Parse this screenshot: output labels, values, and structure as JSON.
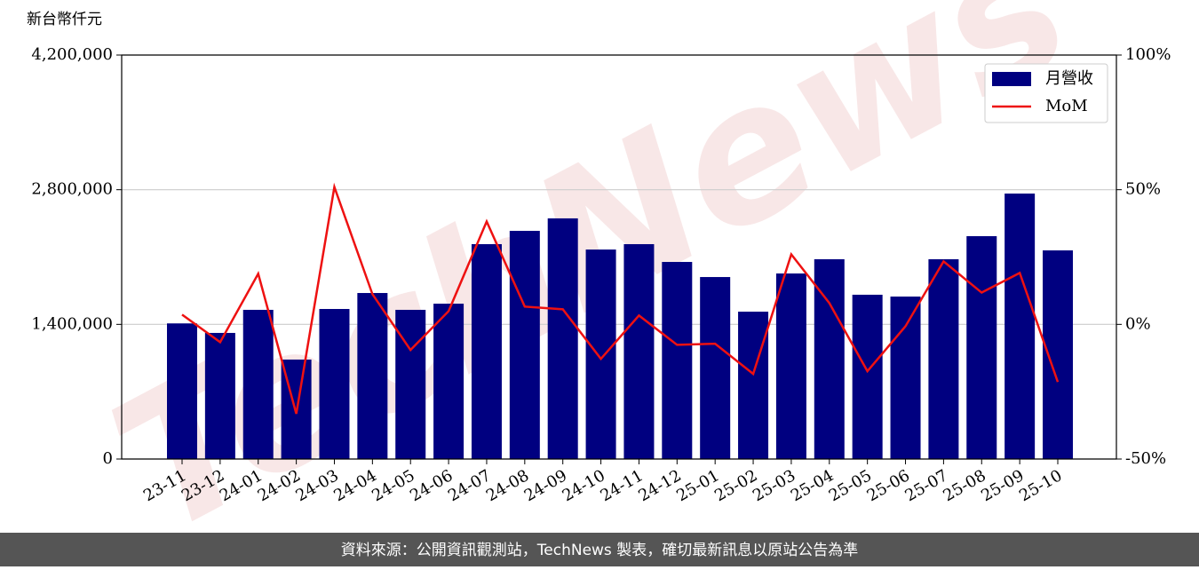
{
  "chart_data": {
    "type": "bar-line",
    "y_label": "新台幣仟元",
    "watermark": "TechNews",
    "footer": "資料來源：公開資訊觀測站，TechNews 製表，確切最新訊息以原站公告為準",
    "categories": [
      "23-11",
      "23-12",
      "24-01",
      "24-02",
      "24-03",
      "24-04",
      "24-05",
      "24-06",
      "24-07",
      "24-08",
      "24-09",
      "24-10",
      "24-11",
      "24-12",
      "25-01",
      "25-02",
      "25-03",
      "25-04",
      "25-05",
      "25-06",
      "25-07",
      "25-08",
      "25-09",
      "25-10"
    ],
    "series": [
      {
        "name": "月營收",
        "color": "#000080",
        "type": "bar",
        "values": [
          1410000,
          1311000,
          1551000,
          1034000,
          1560000,
          1726000,
          1551000,
          1615000,
          2234000,
          2372000,
          2502000,
          2178000,
          2234000,
          2049000,
          1892000,
          1532000,
          1929000,
          2077000,
          1708000,
          1689000,
          2077000,
          2317000,
          2760000,
          2169000
        ]
      },
      {
        "name": "MoM",
        "color": "#ee1111",
        "type": "line",
        "axis": "y2",
        "values": [
          3.6,
          -6.6,
          18.8,
          -33.2,
          51,
          11.2,
          -9.5,
          4.9,
          38.2,
          6.6,
          5.6,
          -12.8,
          3.3,
          -7.6,
          -7.2,
          -18.4,
          26,
          7.9,
          -17.4,
          -0.7,
          23.4,
          11.8,
          19.1,
          -21.4
        ]
      }
    ],
    "ylim": [
      0,
      4200000
    ],
    "yticks": [
      0,
      {
        "value": 1400000,
        "label": "1,400,000"
      },
      {
        "value": 2800000,
        "label": "2,800,000"
      },
      {
        "value": 4200000,
        "label": "4,200,000"
      }
    ],
    "y2lim": [
      -50,
      100
    ],
    "y2ticks": [
      {
        "value": -50,
        "label": "-50%"
      },
      {
        "value": 0,
        "label": "0%"
      },
      {
        "value": 50,
        "label": "50%"
      },
      {
        "value": 100,
        "label": "100%"
      }
    ],
    "grid": true,
    "legend": "upper-right"
  }
}
